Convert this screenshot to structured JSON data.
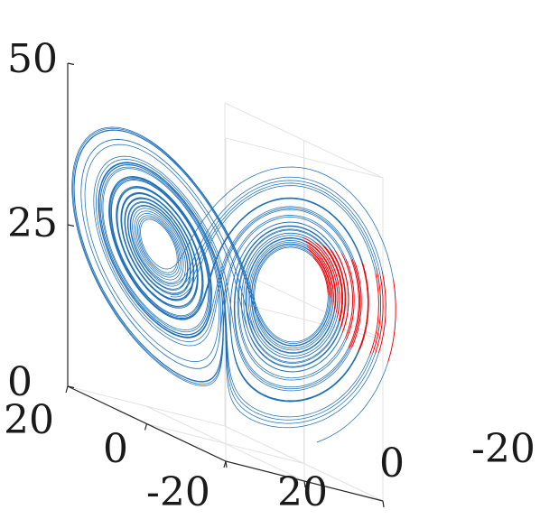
{
  "chart_data": {
    "type": "line3d",
    "title": "",
    "xlabel": "",
    "ylabel": "",
    "zlabel": "",
    "grid": true,
    "z_ticks": [
      "0",
      "25",
      "50"
    ],
    "front_x_ticks": [
      "20",
      "0",
      "-20"
    ],
    "left_y_ticks": [
      "20",
      "0",
      "-20"
    ],
    "zlim": [
      0,
      50
    ],
    "xlim": [
      -20,
      20
    ],
    "ylim": [
      -20,
      20
    ],
    "system": {
      "name": "lorenz",
      "sigma": 10,
      "rho": 28,
      "beta": 2.6667,
      "initial_point": [
        -10,
        -12,
        5
      ],
      "dt": 0.005,
      "steps": 12000
    },
    "series": [
      {
        "color": "#1f6fb8"
      },
      {
        "color": "#ff0000",
        "z_range": [
          22,
          36
        ],
        "x_range": [
          -20,
          -12
        ]
      }
    ]
  }
}
